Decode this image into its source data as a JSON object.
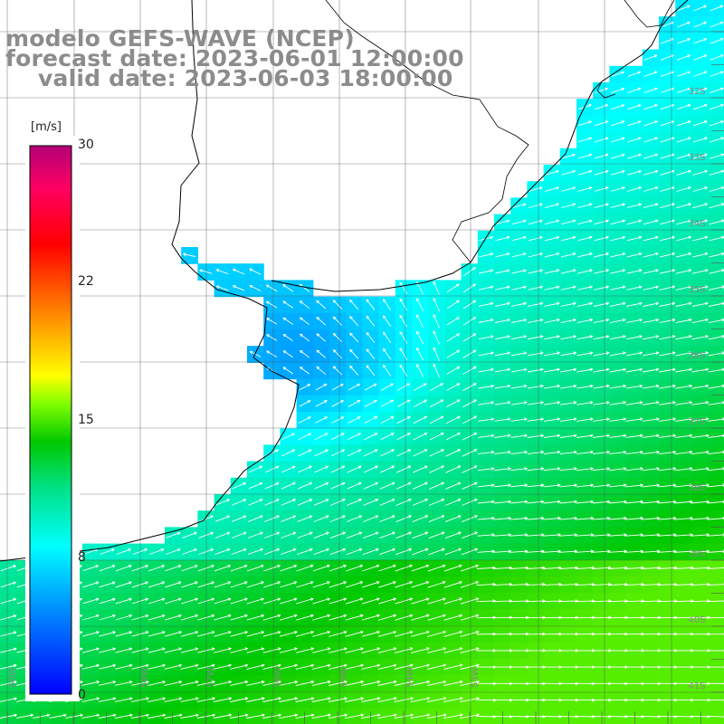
{
  "title": {
    "model": "modelo GEFS-WAVE (NCEP)",
    "forecast": "forecast date: 2023-06-01 12:00:00",
    "valid": "valid date: 2023-06-03 18:00:00"
  },
  "colorbar": {
    "unit": "[m/s]",
    "ticks": [
      "30",
      "22",
      "15",
      "8",
      "0"
    ],
    "tick_values": [
      30,
      22,
      15,
      8,
      0
    ],
    "range": [
      0,
      30
    ],
    "colors": [
      "#0000ff",
      "#00b4ff",
      "#00ffff",
      "#00c800",
      "#00ff00",
      "#ffff00",
      "#ff8000",
      "#ff0000",
      "#ff00b4",
      "#b40078"
    ]
  },
  "map": {
    "region": "Río de la Plata estuary and adjacent South Atlantic",
    "variable": "wind speed at 10 m",
    "lon_range": [
      -59.3,
      -52.8
    ],
    "lat_range": [
      -41.3,
      -31.5
    ],
    "lat_labels": [
      "32S",
      "33S",
      "34S",
      "35S",
      "36S",
      "37S",
      "38S",
      "39S",
      "40S",
      "41S"
    ],
    "lon_labels": [
      "60W",
      "59W",
      "58W",
      "57W",
      "56W",
      "55W",
      "54W",
      "53W"
    ],
    "wind_arrows": "white"
  }
}
